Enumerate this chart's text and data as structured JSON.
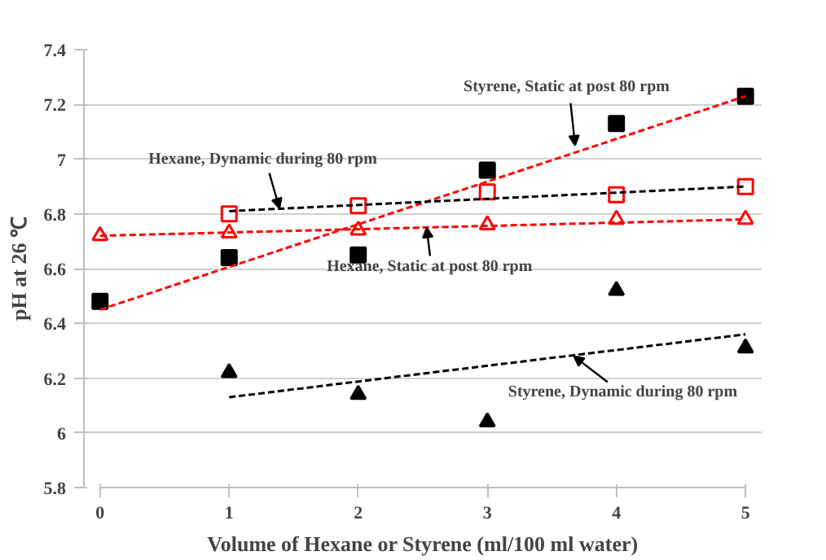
{
  "chart_data": {
    "type": "scatter",
    "xlabel": "Volume of Hexane or Styrene (ml/100 ml water)",
    "ylabel": "pH at 26 ℃",
    "xlim": [
      0,
      5
    ],
    "xticks": [
      0,
      1,
      2,
      3,
      4,
      5
    ],
    "ylim": [
      5.8,
      7.4
    ],
    "yticks": [
      5.8,
      6,
      6.2,
      6.4,
      6.6,
      6.8,
      7,
      7.2,
      7.4
    ],
    "grid": "y",
    "series": [
      {
        "marker": "square",
        "color": "#000000",
        "x": [
          0,
          1,
          2,
          3,
          4,
          5
        ],
        "values": [
          6.48,
          6.64,
          6.65,
          6.96,
          7.13,
          7.23
        ]
      },
      {
        "marker": "square",
        "color": "#ff0000",
        "x": [
          1,
          2,
          3,
          4,
          5
        ],
        "values": [
          6.8,
          6.83,
          6.88,
          6.87,
          6.9
        ]
      },
      {
        "marker": "triangle",
        "color": "#ff0000",
        "x": [
          0,
          1,
          2,
          3,
          4,
          5
        ],
        "values": [
          6.72,
          6.73,
          6.74,
          6.76,
          6.78,
          6.78
        ]
      },
      {
        "marker": "triangle",
        "color": "#000000",
        "x": [
          1,
          2,
          3,
          4,
          5
        ],
        "values": [
          6.22,
          6.14,
          6.04,
          6.52,
          6.31
        ]
      },
      {
        "type": "line",
        "line_style": "dashed",
        "color": "#ff0000",
        "x": [
          0,
          5
        ],
        "values": [
          6.45,
          7.23
        ]
      },
      {
        "type": "line",
        "line_style": "dashed",
        "color": "#000000",
        "x": [
          1,
          5
        ],
        "values": [
          6.81,
          6.9
        ]
      },
      {
        "type": "line",
        "line_style": "dashed",
        "color": "#ff0000",
        "x": [
          0,
          5
        ],
        "values": [
          6.72,
          6.78
        ]
      },
      {
        "type": "line",
        "line_style": "dashed",
        "color": "#000000",
        "x": [
          1,
          5
        ],
        "values": [
          6.13,
          6.36
        ]
      }
    ],
    "annotations": [
      {
        "text": "Styrene, Static at post  80 rpm",
        "x": 3.68,
        "y": 7.05
      },
      {
        "text": "Hexane, Dynamic during  80 rpm",
        "x": 1.39,
        "y": 6.82
      },
      {
        "text": "Hexane, Static at post  80 rpm",
        "x": 2.53,
        "y": 6.75
      },
      {
        "text": "Styrene, Dynamic during 80 rpm",
        "x": 3.67,
        "y": 6.28
      }
    ]
  }
}
